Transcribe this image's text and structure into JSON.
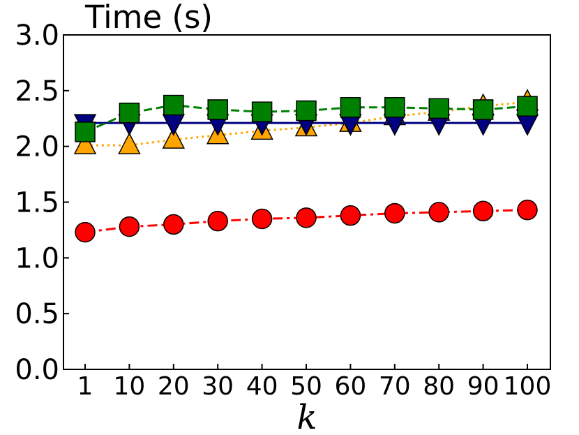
{
  "chart_data": {
    "type": "line",
    "ylabel": "Time (s)",
    "xlabel": "k",
    "ylim": [
      0,
      3.0
    ],
    "yticks": [
      0.0,
      0.5,
      1.0,
      1.5,
      2.0,
      2.5,
      3.0
    ],
    "ytick_labels": [
      "0.0",
      "0.5",
      "1.0",
      "1.5",
      "2.0",
      "2.5",
      "3.0"
    ],
    "categories": [
      "1",
      "10",
      "20",
      "30",
      "40",
      "50",
      "60",
      "70",
      "80",
      "90",
      "100"
    ],
    "grid": false,
    "legend": "none",
    "series": [
      {
        "marker": "triangle-up",
        "line_style": "dotted",
        "color": "#FFA500",
        "values": [
          2.01,
          2.01,
          2.06,
          2.1,
          2.14,
          2.17,
          2.21,
          2.27,
          2.31,
          2.36,
          2.4
        ]
      },
      {
        "marker": "triangle-down",
        "line_style": "solid",
        "color": "#000080",
        "values": [
          2.21,
          2.21,
          2.21,
          2.21,
          2.21,
          2.21,
          2.21,
          2.21,
          2.21,
          2.21,
          2.21
        ]
      },
      {
        "marker": "square",
        "line_style": "dashed",
        "color": "#008000",
        "values": [
          2.13,
          2.3,
          2.37,
          2.33,
          2.31,
          2.32,
          2.35,
          2.35,
          2.34,
          2.33,
          2.36
        ]
      },
      {
        "marker": "circle",
        "line_style": "dash-dot",
        "color": "#FF0000",
        "values": [
          1.23,
          1.28,
          1.3,
          1.33,
          1.35,
          1.36,
          1.38,
          1.4,
          1.41,
          1.42,
          1.43
        ]
      }
    ]
  }
}
